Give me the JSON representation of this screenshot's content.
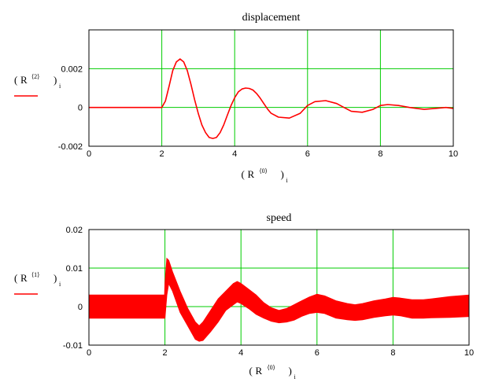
{
  "colors": {
    "series": "#ff0000",
    "grid": "#00cc00",
    "frame": "#000000",
    "background": "#ffffff"
  },
  "chart_data": [
    {
      "type": "line",
      "title": "displacement",
      "xlabel": {
        "base": "R",
        "superscript": "⟨0⟩",
        "subscript": "i"
      },
      "ylabel": {
        "base": "R",
        "superscript": "⟨2⟩",
        "subscript": "i"
      },
      "xlim": [
        0,
        10
      ],
      "ylim": [
        -0.002,
        0.004
      ],
      "x_ticks": [
        0,
        2,
        4,
        6,
        8,
        10
      ],
      "x_tick_labels": [
        "0",
        "2",
        "4",
        "6",
        "8",
        "10"
      ],
      "y_ticks": [
        -0.002,
        0,
        0.002
      ],
      "y_tick_labels": [
        "-0.002",
        "0",
        "0.002"
      ],
      "grid": true,
      "series": [
        {
          "x": [
            0,
            1.0,
            2.0,
            2.1,
            2.2,
            2.3,
            2.4,
            2.5,
            2.6,
            2.7,
            2.8,
            2.9,
            3.0,
            3.1,
            3.2,
            3.3,
            3.4,
            3.5,
            3.6,
            3.7,
            3.8,
            3.9,
            4.0,
            4.1,
            4.2,
            4.3,
            4.4,
            4.5,
            4.6,
            4.7,
            4.8,
            4.9,
            5.0,
            5.2,
            5.5,
            5.8,
            6.0,
            6.2,
            6.5,
            6.8,
            7.0,
            7.2,
            7.5,
            7.8,
            8.0,
            8.2,
            8.5,
            8.8,
            9.0,
            9.2,
            9.5,
            9.8,
            10.0
          ],
          "y": [
            0,
            0,
            0,
            0.00033,
            0.0011,
            0.0019,
            0.00235,
            0.0025,
            0.00235,
            0.0019,
            0.0012,
            0.0004,
            -0.0003,
            -0.0009,
            -0.0013,
            -0.00155,
            -0.0016,
            -0.00155,
            -0.0013,
            -0.0009,
            -0.0004,
            0.0001,
            0.0005,
            0.0008,
            0.00095,
            0.001,
            0.00098,
            0.0009,
            0.00072,
            0.00048,
            0.0002,
            -8e-05,
            -0.0003,
            -0.0005,
            -0.00055,
            -0.0003,
            0.0001,
            0.0003,
            0.00035,
            0.0002,
            0.0,
            -0.0002,
            -0.00025,
            -0.0001,
            0.0001,
            0.00015,
            0.0001,
            0.0,
            -5e-05,
            -0.0001,
            -5e-05,
            0.0,
            -5e-05
          ]
        }
      ]
    },
    {
      "type": "area",
      "title": "speed",
      "xlabel": {
        "base": "R",
        "superscript": "⟨0⟩",
        "subscript": "i"
      },
      "ylabel": {
        "base": "R",
        "superscript": "⟨1⟩",
        "subscript": "i"
      },
      "xlim": [
        0,
        10
      ],
      "ylim": [
        -0.01,
        0.02
      ],
      "x_ticks": [
        0,
        2,
        4,
        6,
        8,
        10
      ],
      "x_tick_labels": [
        "0",
        "2",
        "4",
        "6",
        "8",
        "10"
      ],
      "y_ticks": [
        -0.01,
        0,
        0.01,
        0.02
      ],
      "y_tick_labels": [
        "-0.01",
        "0",
        "0.01",
        "0.02"
      ],
      "grid": true,
      "series": [
        {
          "note_band": "series drawn as a dense oscillation band between lower and upper values",
          "x": [
            0,
            1.0,
            1.99,
            2.0,
            2.05,
            2.1,
            2.2,
            2.4,
            2.6,
            2.8,
            2.9,
            3.0,
            3.2,
            3.4,
            3.6,
            3.8,
            3.9,
            4.0,
            4.2,
            4.4,
            4.6,
            4.8,
            5.0,
            5.2,
            5.4,
            5.6,
            5.8,
            6.0,
            6.2,
            6.5,
            6.8,
            7.0,
            7.2,
            7.5,
            7.8,
            8.0,
            8.2,
            8.5,
            8.8,
            9.0,
            9.5,
            10.0
          ],
          "upper": [
            0.003,
            0.003,
            0.003,
            0.006,
            0.0125,
            0.012,
            0.009,
            0.004,
            -0.0005,
            -0.004,
            -0.005,
            -0.004,
            -0.001,
            0.002,
            0.004,
            0.006,
            0.0065,
            0.006,
            0.0045,
            0.003,
            0.001,
            -0.0003,
            -0.001,
            -0.0005,
            0.0005,
            0.0015,
            0.0025,
            0.0032,
            0.0028,
            0.0015,
            0.0008,
            0.0005,
            0.0008,
            0.0015,
            0.002,
            0.0024,
            0.0022,
            0.0018,
            0.0018,
            0.002,
            0.0026,
            0.003
          ],
          "lower": [
            -0.003,
            -0.003,
            -0.003,
            -0.003,
            0.003,
            0.006,
            0.004,
            -0.0015,
            -0.005,
            -0.0085,
            -0.009,
            -0.0088,
            -0.0065,
            -0.004,
            -0.001,
            0.0005,
            0.0012,
            0.0008,
            -0.0005,
            -0.002,
            -0.003,
            -0.0038,
            -0.0042,
            -0.004,
            -0.0035,
            -0.0025,
            -0.0018,
            -0.0015,
            -0.0018,
            -0.003,
            -0.0034,
            -0.0036,
            -0.0034,
            -0.0028,
            -0.0024,
            -0.0022,
            -0.0024,
            -0.003,
            -0.003,
            -0.0029,
            -0.0028,
            -0.0026
          ]
        }
      ]
    }
  ]
}
